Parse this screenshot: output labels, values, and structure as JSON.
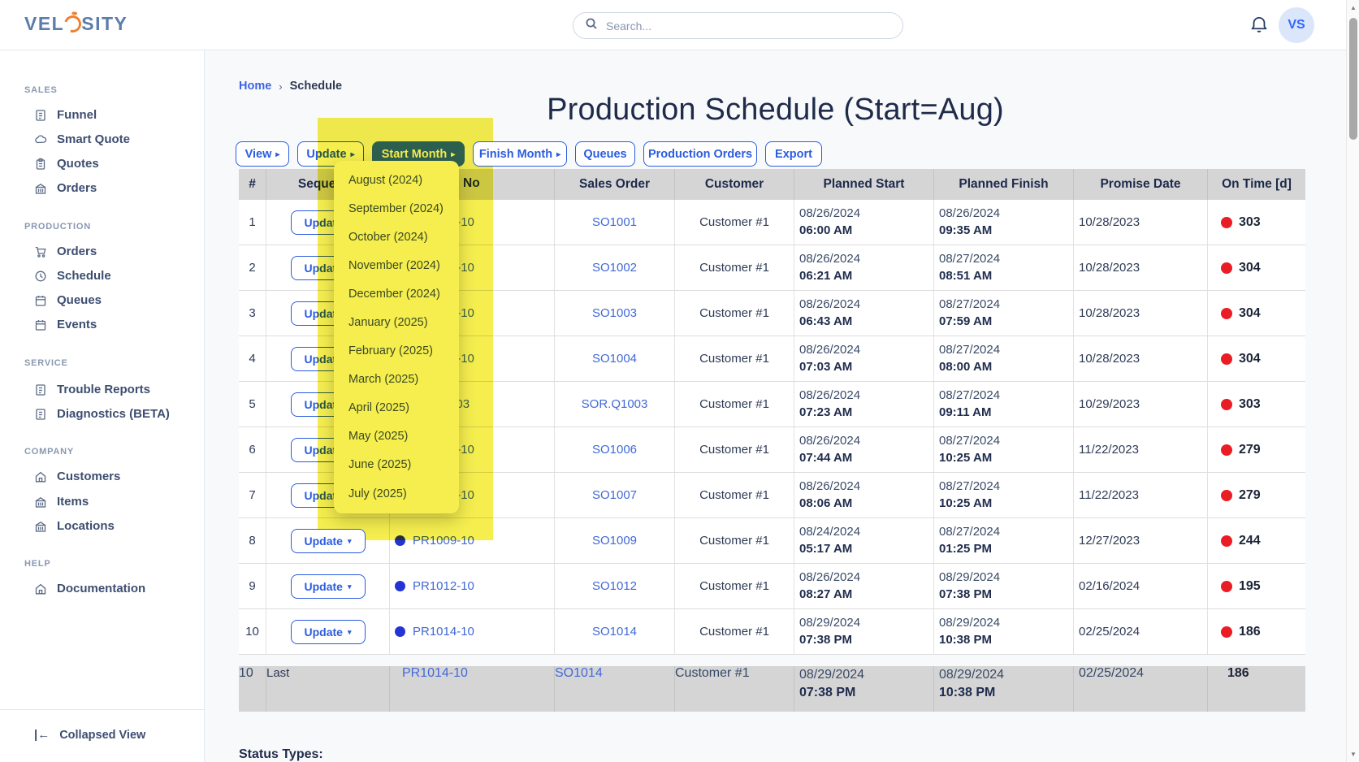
{
  "header": {
    "logo_text_left": "VEL",
    "logo_text_right": "SITY",
    "search_placeholder": "Search...",
    "avatar_initials": "VS"
  },
  "sidebar": {
    "sections": [
      {
        "label": "SALES",
        "items": [
          {
            "label": "Funnel",
            "icon": "report-icon"
          },
          {
            "label": "Smart Quote",
            "icon": "cloud-icon"
          },
          {
            "label": "Quotes",
            "icon": "clipboard-icon"
          },
          {
            "label": "Orders",
            "icon": "bank-icon"
          }
        ]
      },
      {
        "label": "PRODUCTION",
        "items": [
          {
            "label": "Orders",
            "icon": "cart-icon"
          },
          {
            "label": "Schedule",
            "icon": "clock-icon"
          },
          {
            "label": "Queues",
            "icon": "calendar-icon"
          },
          {
            "label": "Events",
            "icon": "calendar-icon"
          }
        ]
      },
      {
        "label": "SERVICE",
        "items": [
          {
            "label": "Trouble Reports",
            "icon": "report-icon"
          },
          {
            "label": "Diagnostics (BETA)",
            "icon": "report-icon"
          }
        ]
      },
      {
        "label": "COMPANY",
        "items": [
          {
            "label": "Customers",
            "icon": "house-icon"
          },
          {
            "label": "Items",
            "icon": "bank-icon"
          },
          {
            "label": "Locations",
            "icon": "bank-icon"
          }
        ]
      },
      {
        "label": "HELP",
        "items": [
          {
            "label": "Documentation",
            "icon": "house-icon"
          }
        ]
      }
    ],
    "collapse_label": "Collapsed View"
  },
  "breadcrumb": {
    "home": "Home",
    "separator": "›",
    "current": "Schedule"
  },
  "page": {
    "title": "Production Schedule (Start=Aug)"
  },
  "toolbar": {
    "buttons": [
      {
        "label": "View",
        "arrow": "▸"
      },
      {
        "label": "Update",
        "arrow": "▸"
      },
      {
        "label": "Start Month",
        "arrow": "▸",
        "primary": true
      },
      {
        "label": "Finish Month",
        "arrow": "▸",
        "lifted": true
      },
      {
        "label": "Queues"
      },
      {
        "label": "Production Orders"
      },
      {
        "label": "Export"
      }
    ]
  },
  "month_dropdown": {
    "items": [
      "August (2024)",
      "September (2024)",
      "October (2024)",
      "November (2024)",
      "December (2024)",
      "January (2025)",
      "February (2025)",
      "March (2025)",
      "April (2025)",
      "May (2025)",
      "June (2025)",
      "July (2025)"
    ]
  },
  "table": {
    "columns": [
      "#",
      "Sequence",
      "No",
      "Sales Order",
      "Customer",
      "Planned Start",
      "Planned Finish",
      "Promise Date",
      "On Time [d]"
    ],
    "update_button_label": "Update",
    "update_caret": "▾",
    "rows": [
      {
        "num": "1",
        "prod_no": "PR1001-10",
        "sales_order": "SO1001",
        "customer": "Customer #1",
        "planned_start_date": "08/26/2024",
        "planned_start_time": "06:00 AM",
        "planned_finish_date": "08/26/2024",
        "planned_finish_time": "09:35 AM",
        "promise_date": "10/28/2023",
        "on_time": "303"
      },
      {
        "num": "2",
        "prod_no": "PR1002-10",
        "sales_order": "SO1002",
        "customer": "Customer #1",
        "planned_start_date": "08/26/2024",
        "planned_start_time": "06:21 AM",
        "planned_finish_date": "08/27/2024",
        "planned_finish_time": "08:51 AM",
        "promise_date": "10/28/2023",
        "on_time": "304"
      },
      {
        "num": "3",
        "prod_no": "PR1003-10",
        "sales_order": "SO1003",
        "customer": "Customer #1",
        "planned_start_date": "08/26/2024",
        "planned_start_time": "06:43 AM",
        "planned_finish_date": "08/27/2024",
        "planned_finish_time": "07:59 AM",
        "promise_date": "10/28/2023",
        "on_time": "304"
      },
      {
        "num": "4",
        "prod_no": "PR1004-10",
        "sales_order": "SO1004",
        "customer": "Customer #1",
        "planned_start_date": "08/26/2024",
        "planned_start_time": "07:03 AM",
        "planned_finish_date": "08/27/2024",
        "planned_finish_time": "08:00 AM",
        "promise_date": "10/28/2023",
        "on_time": "304"
      },
      {
        "num": "5",
        "prod_no": "PR.Q1003",
        "sales_order": "SOR.Q1003",
        "customer": "Customer #1",
        "planned_start_date": "08/26/2024",
        "planned_start_time": "07:23 AM",
        "planned_finish_date": "08/27/2024",
        "planned_finish_time": "09:11 AM",
        "promise_date": "10/29/2023",
        "on_time": "303"
      },
      {
        "num": "6",
        "prod_no": "PR1006-10",
        "sales_order": "SO1006",
        "customer": "Customer #1",
        "planned_start_date": "08/26/2024",
        "planned_start_time": "07:44 AM",
        "planned_finish_date": "08/27/2024",
        "planned_finish_time": "10:25 AM",
        "promise_date": "11/22/2023",
        "on_time": "279"
      },
      {
        "num": "7",
        "prod_no": "PR1007-10",
        "sales_order": "SO1007",
        "customer": "Customer #1",
        "planned_start_date": "08/26/2024",
        "planned_start_time": "08:06 AM",
        "planned_finish_date": "08/27/2024",
        "planned_finish_time": "10:25 AM",
        "promise_date": "11/22/2023",
        "on_time": "279"
      },
      {
        "num": "8",
        "prod_no": "PR1009-10",
        "sales_order": "SO1009",
        "customer": "Customer #1",
        "planned_start_date": "08/24/2024",
        "planned_start_time": "05:17 AM",
        "planned_finish_date": "08/27/2024",
        "planned_finish_time": "01:25 PM",
        "promise_date": "12/27/2023",
        "on_time": "244"
      },
      {
        "num": "9",
        "prod_no": "PR1012-10",
        "sales_order": "SO1012",
        "customer": "Customer #1",
        "planned_start_date": "08/26/2024",
        "planned_start_time": "08:27 AM",
        "planned_finish_date": "08/29/2024",
        "planned_finish_time": "07:38 PM",
        "promise_date": "02/16/2024",
        "on_time": "195"
      },
      {
        "num": "10",
        "prod_no": "PR1014-10",
        "sales_order": "SO1014",
        "customer": "Customer #1",
        "planned_start_date": "08/29/2024",
        "planned_start_time": "07:38 PM",
        "planned_finish_date": "08/29/2024",
        "planned_finish_time": "10:38 PM",
        "promise_date": "02/25/2024",
        "on_time": "186"
      }
    ],
    "footer_row": {
      "num": "10",
      "sequence": "Last",
      "prod_no": "PR1014-10",
      "sales_order": "SO1014",
      "customer": "Customer #1",
      "planned_start_date": "08/29/2024",
      "planned_start_time": "07:38 PM",
      "planned_finish_date": "08/29/2024",
      "planned_finish_time": "10:38 PM",
      "promise_date": "02/25/2024",
      "on_time": "186"
    }
  },
  "status_section": {
    "heading": "Status Types:"
  },
  "colors": {
    "accent_blue": "#2f66ff",
    "link_blue": "#4169d8",
    "status_red": "#ea1c24",
    "order_dot_blue": "#2433d6",
    "highlight_yellow": "#f5ee4e",
    "header_grey": "#d5d5d5"
  }
}
